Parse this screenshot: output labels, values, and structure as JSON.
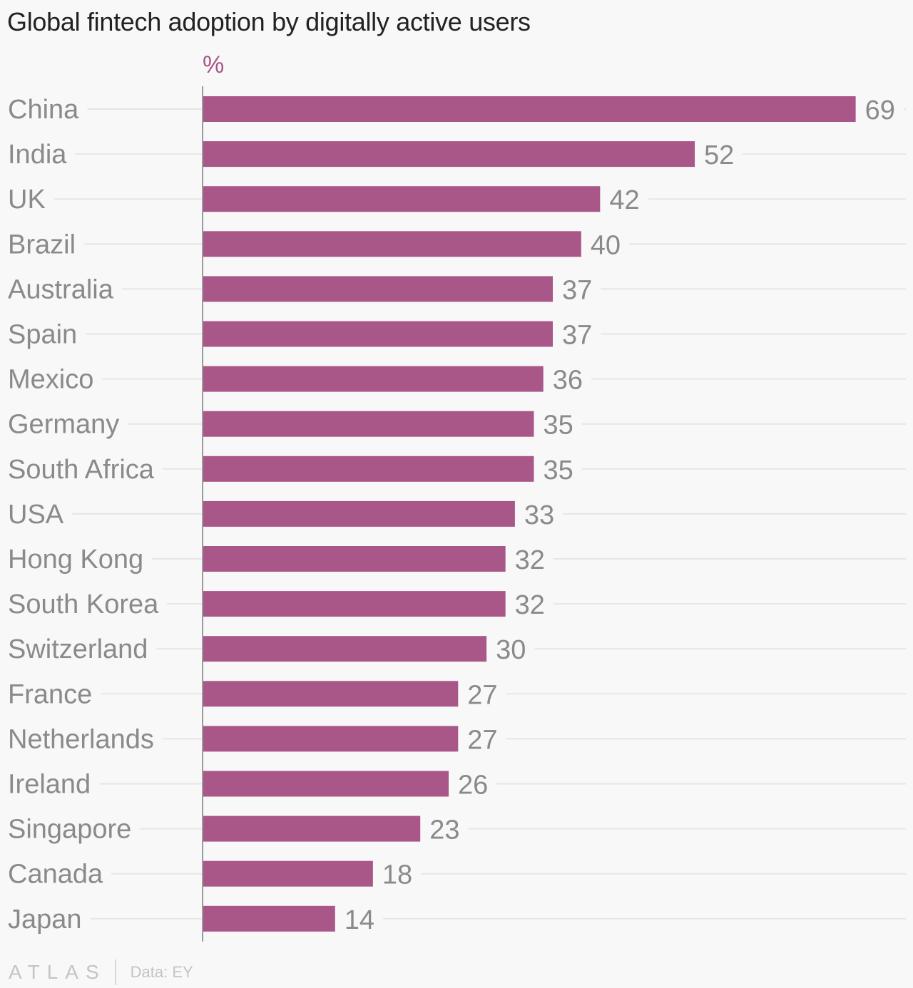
{
  "title": "Global fintech adoption by digitally active users",
  "unit_label": "%",
  "footer": {
    "logo": "ATLAS",
    "source": "Data: EY"
  },
  "colors": {
    "bar": "#a85788",
    "unit": "#a85788",
    "label": "#8a8a8a",
    "grid": "#e6e6e6",
    "axis": "#9a9a9a"
  },
  "chart_data": {
    "type": "bar",
    "orientation": "horizontal",
    "title": "Global fintech adoption by digitally active users",
    "ylabel": "%",
    "categories": [
      "China",
      "India",
      "UK",
      "Brazil",
      "Australia",
      "Spain",
      "Mexico",
      "Germany",
      "South Africa",
      "USA",
      "Hong Kong",
      "South Korea",
      "Switzerland",
      "France",
      "Netherlands",
      "Ireland",
      "Singapore",
      "Canada",
      "Japan"
    ],
    "values": [
      69,
      52,
      42,
      40,
      37,
      37,
      36,
      35,
      35,
      33,
      32,
      32,
      30,
      27,
      27,
      26,
      23,
      18,
      14
    ],
    "xlim": [
      0,
      74
    ],
    "grid": true,
    "data_labels": true
  }
}
